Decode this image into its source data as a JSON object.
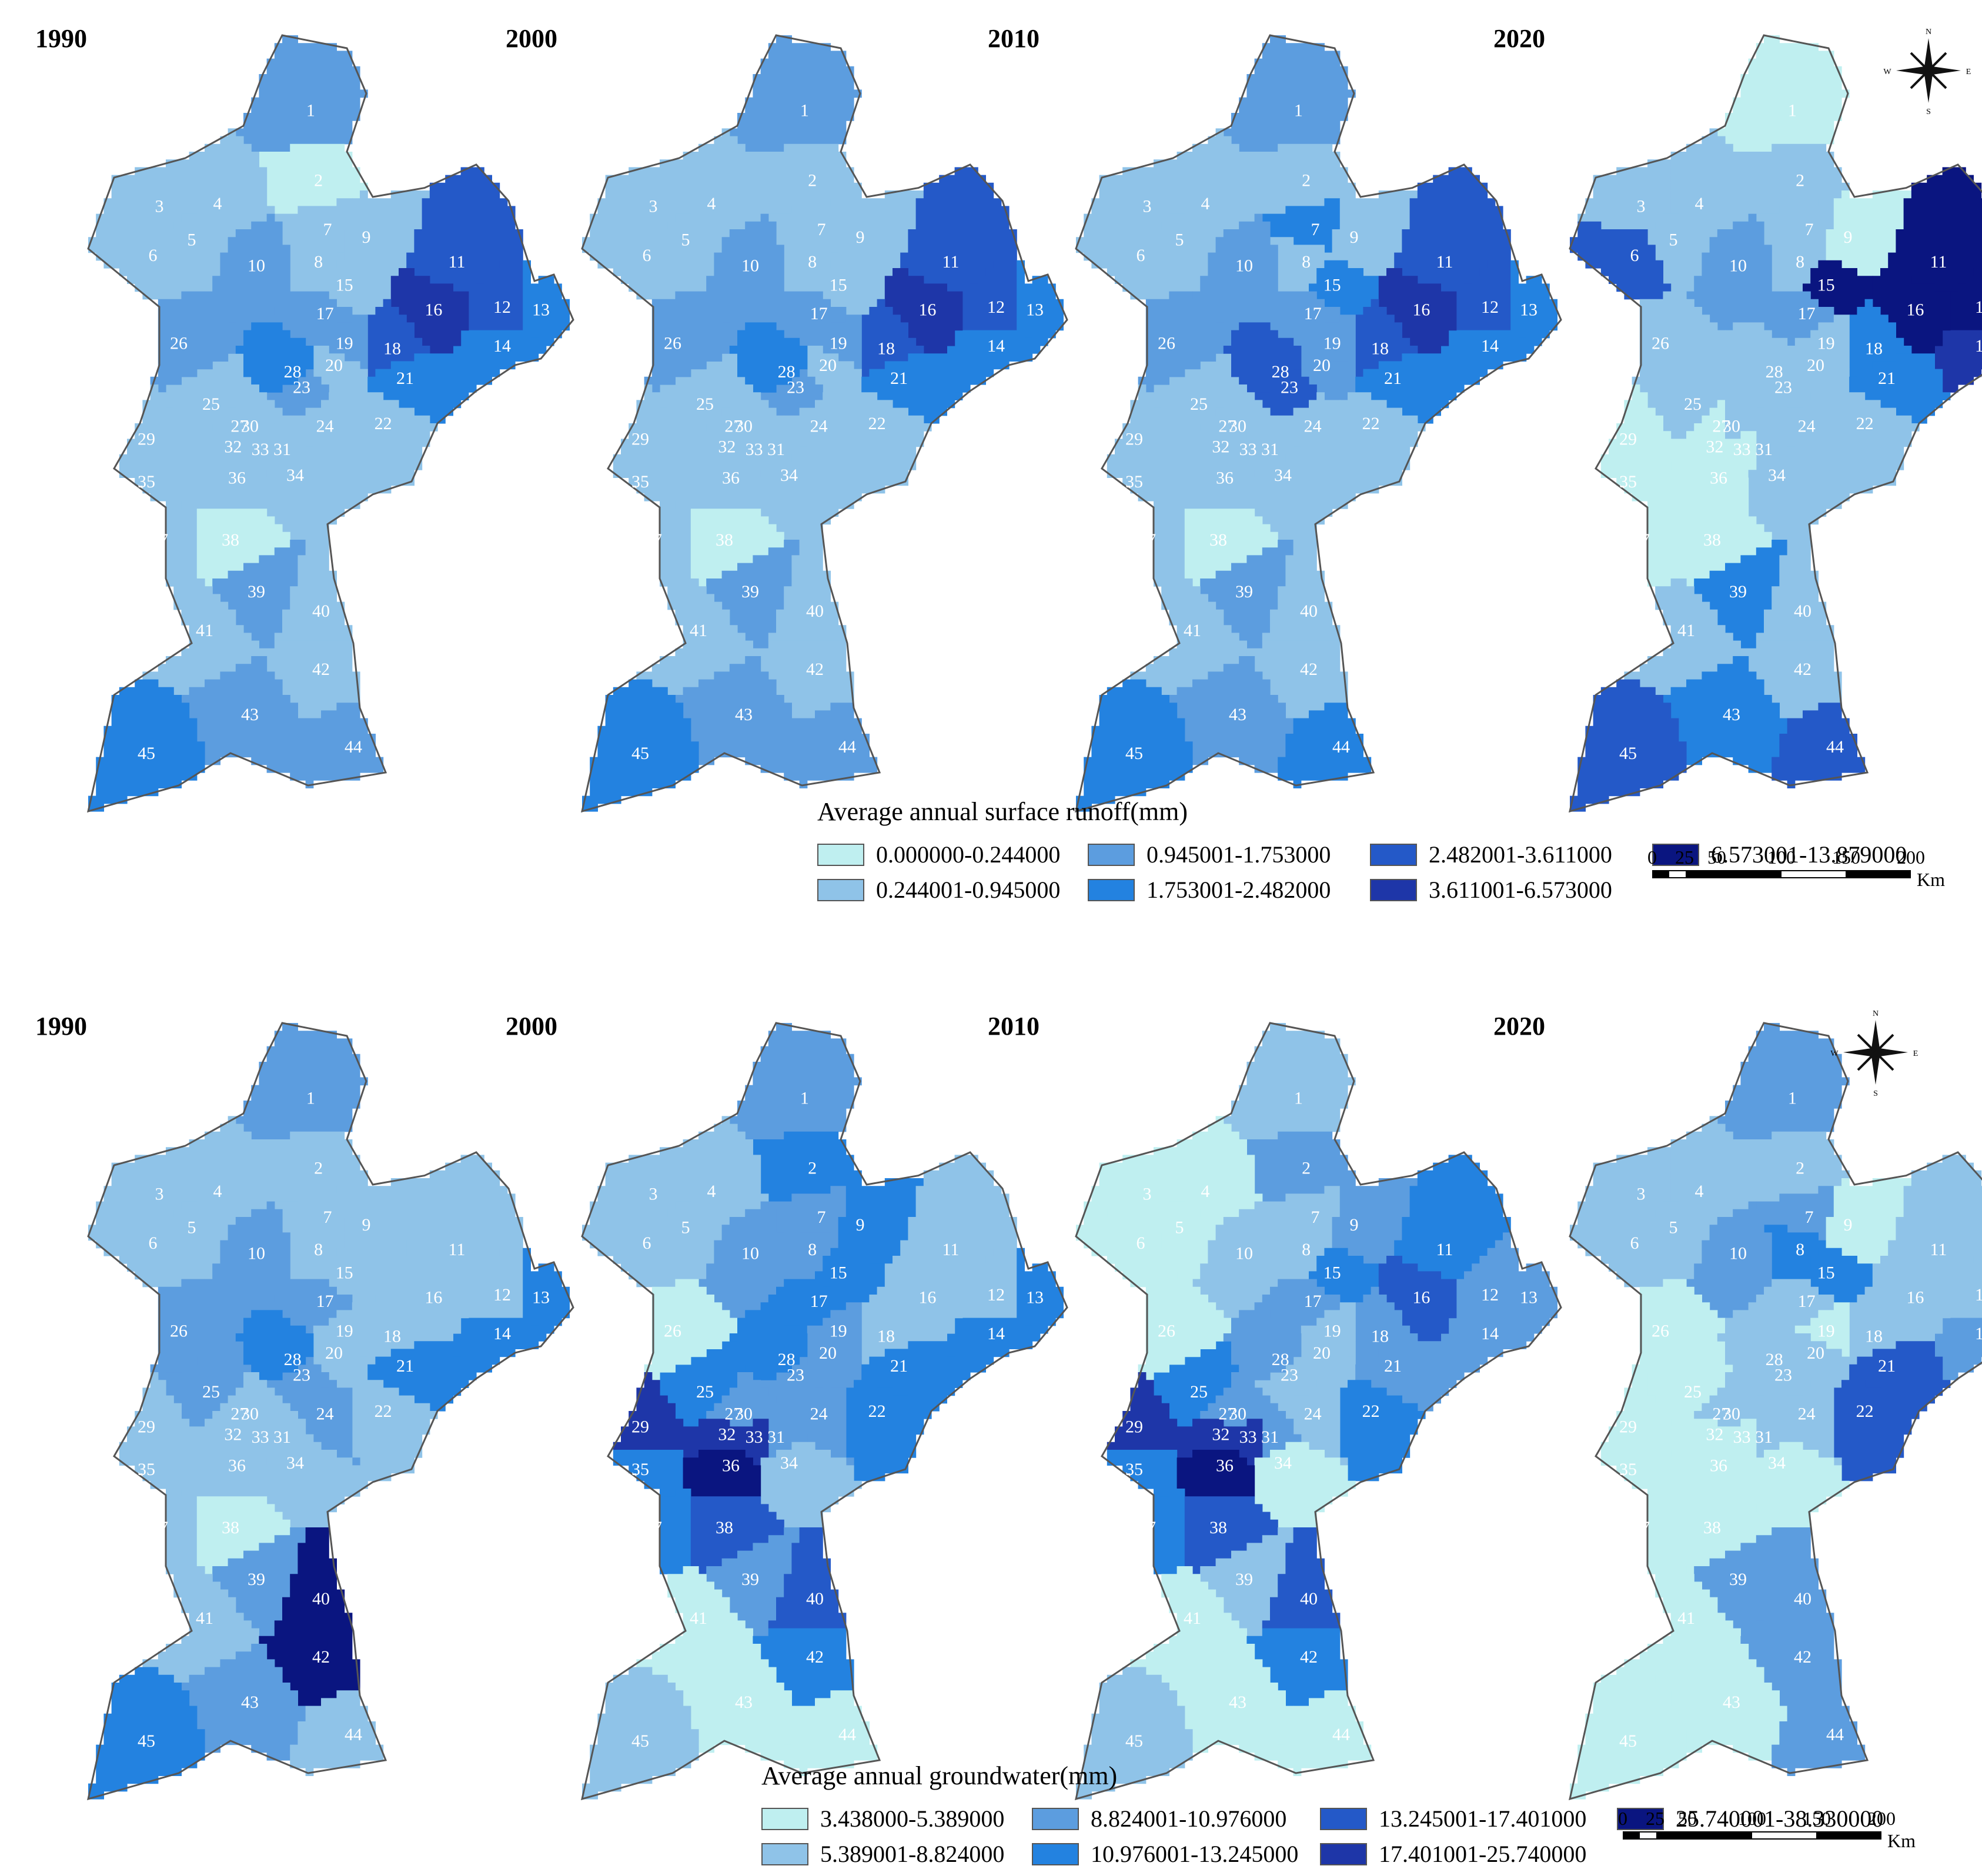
{
  "panels": {
    "top": {
      "legend_title": "Average annual surface runoff(mm)",
      "years": [
        "1990",
        "2000",
        "2010",
        "2020"
      ],
      "classes": [
        {
          "label": "0.000000-0.244000",
          "color": "#bfeff0"
        },
        {
          "label": "0.244001-0.945000",
          "color": "#8fc3e8"
        },
        {
          "label": "0.945001-1.753000",
          "color": "#5c9ddf"
        },
        {
          "label": "1.753001-2.482000",
          "color": "#2382e0"
        },
        {
          "label": "2.482001-3.611000",
          "color": "#2459c8"
        },
        {
          "label": "3.611001-6.573000",
          "color": "#1e36a8"
        },
        {
          "label": "6.573001-13.879000",
          "color": "#0a1580"
        }
      ],
      "maps": [
        {
          "year": "1990",
          "classes": [
            2,
            0,
            1,
            1,
            1,
            1,
            1,
            1,
            1,
            2,
            4,
            4,
            3,
            3,
            1,
            5,
            2,
            4,
            2,
            1,
            3,
            1,
            2,
            1,
            1,
            2,
            1,
            3,
            1,
            1,
            1,
            1,
            1,
            1,
            1,
            1,
            1,
            0,
            2,
            1,
            1,
            1,
            2,
            2,
            3
          ]
        },
        {
          "year": "2000",
          "classes": [
            2,
            1,
            1,
            1,
            1,
            1,
            1,
            1,
            1,
            2,
            4,
            4,
            3,
            3,
            1,
            5,
            2,
            4,
            2,
            1,
            3,
            1,
            2,
            1,
            1,
            2,
            1,
            3,
            1,
            1,
            1,
            1,
            1,
            1,
            1,
            1,
            1,
            0,
            2,
            1,
            1,
            1,
            2,
            2,
            3
          ]
        },
        {
          "year": "2010",
          "classes": [
            2,
            1,
            1,
            1,
            1,
            1,
            3,
            1,
            1,
            2,
            4,
            4,
            3,
            3,
            3,
            5,
            2,
            4,
            2,
            2,
            3,
            1,
            4,
            1,
            1,
            2,
            1,
            4,
            1,
            1,
            1,
            1,
            1,
            1,
            1,
            1,
            1,
            0,
            2,
            1,
            1,
            1,
            2,
            3,
            3
          ]
        },
        {
          "year": "2020",
          "classes": [
            0,
            1,
            1,
            1,
            1,
            4,
            1,
            1,
            0,
            2,
            6,
            6,
            5,
            5,
            6,
            6,
            2,
            3,
            1,
            1,
            3,
            1,
            1,
            1,
            1,
            1,
            0,
            1,
            0,
            1,
            1,
            0,
            0,
            1,
            0,
            0,
            0,
            0,
            3,
            1,
            1,
            1,
            3,
            4,
            4
          ]
        }
      ]
    },
    "bottom": {
      "legend_title": "Average annual groundwater(mm)",
      "years": [
        "1990",
        "2000",
        "2010",
        "2020"
      ],
      "classes": [
        {
          "label": "3.438000-5.389000",
          "color": "#bfeff0"
        },
        {
          "label": "5.389001-8.824000",
          "color": "#8fc3e8"
        },
        {
          "label": "8.824001-10.976000",
          "color": "#5c9ddf"
        },
        {
          "label": "10.976001-13.245000",
          "color": "#2382e0"
        },
        {
          "label": "13.245001-17.401000",
          "color": "#2459c8"
        },
        {
          "label": "17.401001-25.740000",
          "color": "#1e36a8"
        },
        {
          "label": "25.740001-38.330000",
          "color": "#0a1580"
        }
      ],
      "maps": [
        {
          "year": "1990",
          "classes": [
            2,
            1,
            1,
            1,
            1,
            1,
            1,
            1,
            1,
            2,
            1,
            1,
            3,
            3,
            1,
            1,
            2,
            1,
            1,
            1,
            3,
            1,
            2,
            2,
            2,
            2,
            1,
            3,
            1,
            1,
            1,
            1,
            1,
            1,
            1,
            1,
            1,
            0,
            2,
            6,
            1,
            6,
            2,
            1,
            3
          ]
        },
        {
          "year": "2000",
          "classes": [
            2,
            3,
            1,
            1,
            1,
            1,
            2,
            2,
            3,
            2,
            1,
            1,
            3,
            3,
            3,
            1,
            3,
            1,
            2,
            2,
            3,
            3,
            2,
            2,
            3,
            0,
            2,
            3,
            5,
            2,
            2,
            5,
            5,
            1,
            3,
            6,
            3,
            4,
            2,
            4,
            0,
            3,
            0,
            0,
            1
          ]
        },
        {
          "year": "2010",
          "classes": [
            1,
            2,
            0,
            0,
            0,
            0,
            1,
            1,
            2,
            1,
            3,
            2,
            2,
            2,
            3,
            4,
            2,
            2,
            1,
            1,
            2,
            3,
            1,
            1,
            3,
            0,
            2,
            2,
            5,
            2,
            2,
            5,
            5,
            0,
            3,
            6,
            3,
            4,
            1,
            4,
            0,
            3,
            0,
            0,
            1
          ]
        },
        {
          "year": "2020",
          "classes": [
            2,
            1,
            1,
            1,
            1,
            1,
            2,
            3,
            0,
            2,
            1,
            1,
            2,
            2,
            3,
            1,
            1,
            1,
            0,
            1,
            4,
            4,
            1,
            1,
            0,
            0,
            1,
            1,
            0,
            1,
            1,
            0,
            0,
            0,
            0,
            0,
            0,
            0,
            2,
            2,
            0,
            2,
            0,
            2,
            0
          ]
        }
      ]
    }
  },
  "scale": {
    "ticks": [
      "0",
      "25",
      "50",
      "100",
      "150",
      "200"
    ],
    "unit": "Km"
  },
  "north_arrow": {
    "icon": "compass-rose-icon",
    "letters": [
      "N",
      "S",
      "E",
      "W"
    ]
  },
  "basins": [
    "1",
    "2",
    "3",
    "4",
    "5",
    "6",
    "7",
    "8",
    "9",
    "10",
    "11",
    "12",
    "13",
    "14",
    "15",
    "16",
    "17",
    "18",
    "19",
    "20",
    "21",
    "22",
    "23",
    "24",
    "25",
    "26",
    "27",
    "28",
    "29",
    "30",
    "31",
    "32",
    "33",
    "34",
    "35",
    "36",
    "37",
    "38",
    "39",
    "40",
    "41",
    "42",
    "43",
    "44",
    "45"
  ]
}
